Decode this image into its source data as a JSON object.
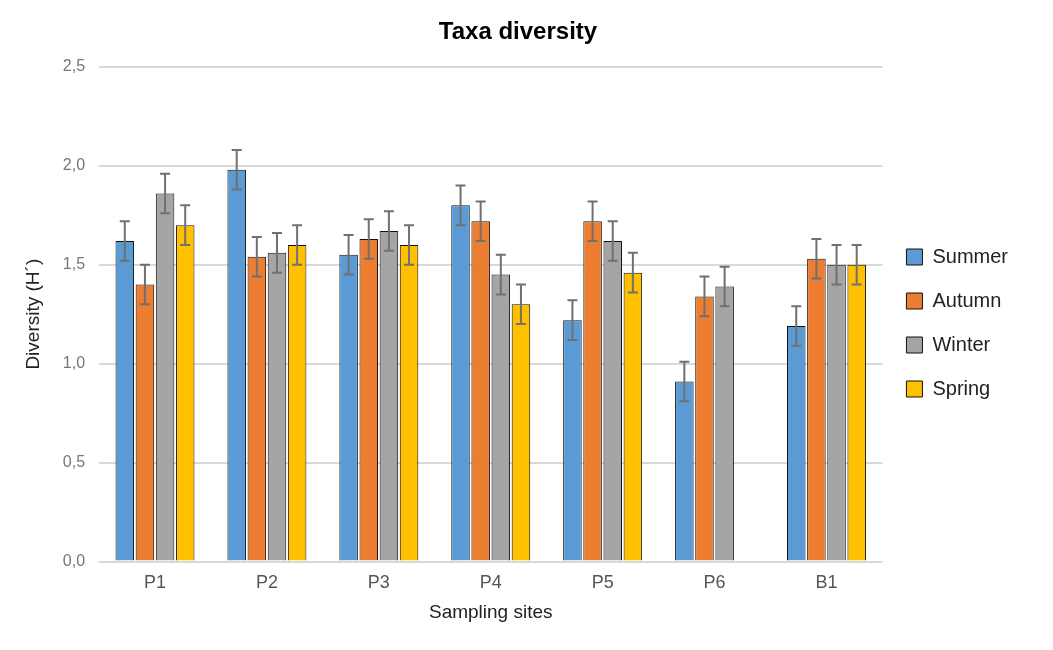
{
  "chart_data": {
    "type": "bar",
    "title": "Taxa diversity",
    "xlabel": "Sampling sites",
    "ylabel": "Diversity (H´)",
    "categories": [
      "P1",
      "P2",
      "P3",
      "P4",
      "P5",
      "P6",
      "B1"
    ],
    "series": [
      {
        "name": "Summer",
        "color": "#5b9bd5",
        "values": [
          1.62,
          1.98,
          1.55,
          1.8,
          1.22,
          0.91,
          1.19
        ],
        "errors": [
          0.1,
          0.1,
          0.1,
          0.1,
          0.1,
          0.1,
          0.1
        ]
      },
      {
        "name": "Autumn",
        "color": "#ed7d31",
        "values": [
          1.4,
          1.54,
          1.63,
          1.72,
          1.72,
          1.34,
          1.53
        ],
        "errors": [
          0.1,
          0.1,
          0.1,
          0.1,
          0.1,
          0.1,
          0.1
        ]
      },
      {
        "name": "Winter",
        "color": "#a5a5a5",
        "values": [
          1.86,
          1.56,
          1.67,
          1.45,
          1.62,
          1.39,
          1.5
        ],
        "errors": [
          0.1,
          0.1,
          0.1,
          0.1,
          0.1,
          0.1,
          0.1
        ]
      },
      {
        "name": "Spring",
        "color": "#ffc000",
        "values": [
          1.7,
          1.6,
          1.6,
          1.3,
          1.46,
          null,
          1.5
        ],
        "errors": [
          0.1,
          0.1,
          0.1,
          0.1,
          0.1,
          null,
          0.1
        ]
      }
    ],
    "ylim": [
      0,
      2.5
    ],
    "yticks": [
      {
        "value": 0,
        "label": "0,0"
      },
      {
        "value": 0.5,
        "label": "0,5"
      },
      {
        "value": 1,
        "label": "1,0"
      },
      {
        "value": 1.5,
        "label": "1,5"
      },
      {
        "value": 2,
        "label": "2,0"
      },
      {
        "value": 2.5,
        "label": "2,5"
      }
    ],
    "grid": "y",
    "legend": "right"
  }
}
